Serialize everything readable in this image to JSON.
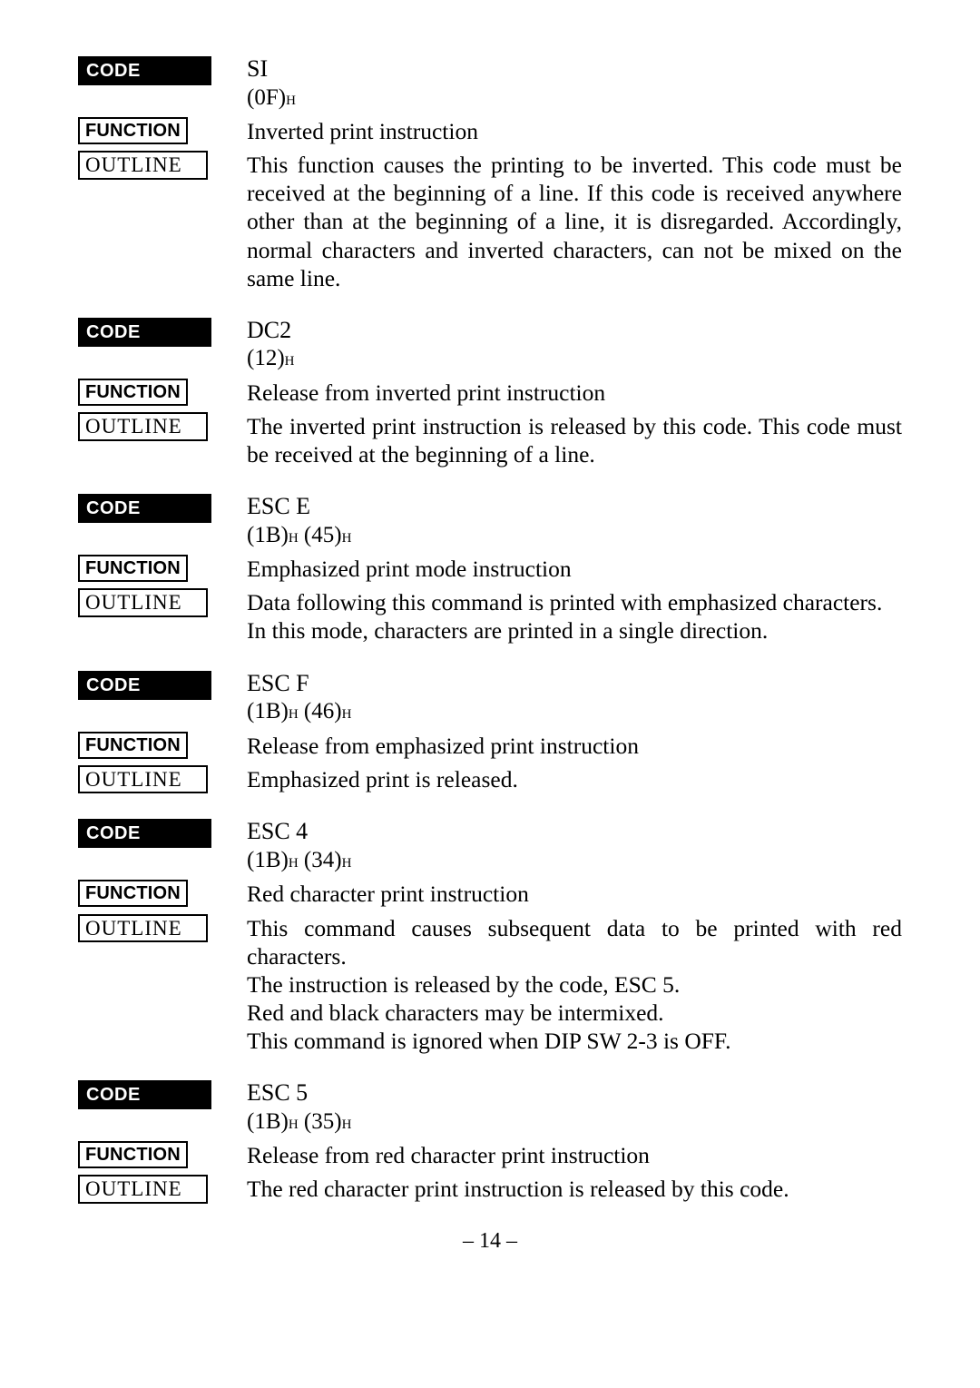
{
  "labels": {
    "code": "CODE",
    "function": "FUNCTION",
    "outline": "OUTLINE"
  },
  "page_number": "– 14 –",
  "entries": [
    {
      "code_name": "SI",
      "code_hex": "(0F)",
      "code_hex2": "",
      "function": "Inverted print instruction",
      "outline": "This function causes the printing to be inverted. This code must be received at the beginning of a line. If this code is received anywhere other than at the beginning of a line, it is disregarded. Accordingly, normal characters and inverted characters, can not be mixed on the same line."
    },
    {
      "code_name": "DC2",
      "code_hex": "(12)",
      "code_hex2": "",
      "function": "Release from inverted print instruction",
      "outline": "The inverted print instruction is released by this code. This code must be received at the beginning of a line."
    },
    {
      "code_name": "ESC E",
      "code_hex": "(1B)",
      "code_hex2": " (45)",
      "function": "Emphasized print mode instruction",
      "outline": "Data following this command is printed with emphasized characters.\nIn this mode, characters are printed in a single direction."
    },
    {
      "code_name": "ESC F",
      "code_hex": "(1B)",
      "code_hex2": " (46)",
      "function": "Release from emphasized print instruction",
      "outline": "Emphasized print is released."
    },
    {
      "code_name": "ESC 4",
      "code_hex": "(1B)",
      "code_hex2": " (34)",
      "function": "Red character print instruction",
      "outline": "This command causes subsequent data to be printed with red characters.\nThe instruction is released by the code, ESC 5.\nRed and black characters may be intermixed.\nThis command is ignored when DIP SW 2-3 is OFF."
    },
    {
      "code_name": "ESC 5",
      "code_hex": "(1B)",
      "code_hex2": " (35)",
      "function": "Release from red character print instruction",
      "outline": "The red character print instruction is released by this code."
    }
  ]
}
